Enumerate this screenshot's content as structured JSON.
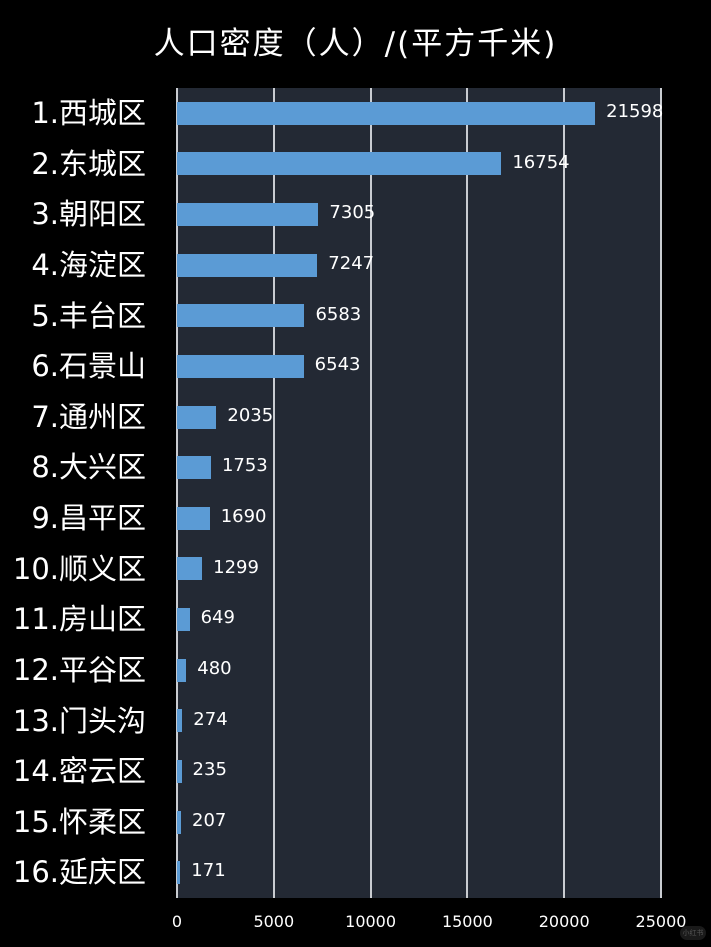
{
  "chart_data": {
    "type": "bar",
    "orientation": "horizontal",
    "title": "人口密度（人）/(平方千米)",
    "xlabel": "",
    "ylabel": "",
    "categories": [
      "1.西城区",
      "2.东城区",
      "3.朝阳区",
      "4.海淀区",
      "5.丰台区",
      "6.石景山",
      "7.通州区",
      "8.大兴区",
      "9.昌平区",
      "10.顺义区",
      "11.房山区",
      "12.平谷区",
      "13.门头沟",
      "14.密云区",
      "15.怀柔区",
      "16.延庆区"
    ],
    "values": [
      21598,
      16754,
      7305,
      7247,
      6583,
      6543,
      2035,
      1753,
      1690,
      1299,
      649,
      480,
      274,
      235,
      207,
      171
    ],
    "xlim": [
      0,
      25000
    ],
    "x_ticks": [
      "0",
      "5000",
      "10000",
      "15000",
      "20000",
      "25000"
    ],
    "grid": true,
    "data_labels": true,
    "legend": "none",
    "colors": {
      "bar": "#5b9bd5",
      "plot_background": "#232934",
      "page_background": "#000000",
      "gridline": "#c9ccd1",
      "text": "#ffffff"
    }
  },
  "watermark": "小红书"
}
